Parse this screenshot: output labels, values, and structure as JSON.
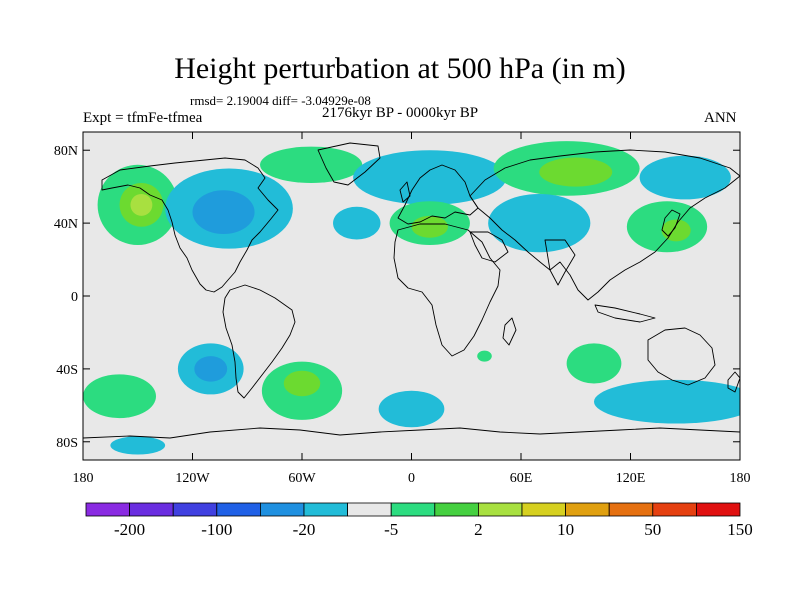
{
  "title": "Height perturbation at 500 hPa (in m)",
  "stats": "rmsd= 2.19004 diff= -3.04929e-08",
  "experiment": "Expt = tfmFe-tfmea",
  "period": "2176kyr BP - 0000kyr BP",
  "season": "ANN",
  "map": {
    "projection": "cylindrical-equidistant",
    "lon_range": [
      -180,
      180
    ],
    "lat_range": [
      -90,
      90
    ],
    "background_color": "#e8e8e8",
    "lat_ticks": [
      {
        "lat": 80,
        "label": "80N"
      },
      {
        "lat": 40,
        "label": "40N"
      },
      {
        "lat": 0,
        "label": "0"
      },
      {
        "lat": -40,
        "label": "40S"
      },
      {
        "lat": -80,
        "label": "80S"
      }
    ],
    "lon_ticks": [
      {
        "lon": -180,
        "label": "180"
      },
      {
        "lon": -120,
        "label": "120W"
      },
      {
        "lon": -60,
        "label": "60W"
      },
      {
        "lon": 0,
        "label": "0"
      },
      {
        "lon": 60,
        "label": "60E"
      },
      {
        "lon": 120,
        "label": "120E"
      },
      {
        "lon": 180,
        "label": "180"
      }
    ],
    "anomaly_regions": [
      {
        "lon": -150,
        "lat": 50,
        "rlon": 22,
        "rlat": 22,
        "color": "#2cdc80"
      },
      {
        "lon": -148,
        "lat": 50,
        "rlon": 12,
        "rlat": 12,
        "color": "#6cda30"
      },
      {
        "lon": -148,
        "lat": 50,
        "rlon": 6,
        "rlat": 6,
        "color": "#a8e040"
      },
      {
        "lon": -100,
        "lat": 48,
        "rlon": 35,
        "rlat": 22,
        "color": "#22bcd8"
      },
      {
        "lon": -103,
        "lat": 46,
        "rlon": 17,
        "rlat": 12,
        "color": "#1f9cdc"
      },
      {
        "lon": -55,
        "lat": 72,
        "rlon": 28,
        "rlat": 10,
        "color": "#2cdc80"
      },
      {
        "lon": -30,
        "lat": 40,
        "rlon": 13,
        "rlat": 9,
        "color": "#22bcd8"
      },
      {
        "lon": 10,
        "lat": 65,
        "rlon": 42,
        "rlat": 15,
        "color": "#22bcd8"
      },
      {
        "lon": 10,
        "lat": 40,
        "rlon": 22,
        "rlat": 12,
        "color": "#2cdc80"
      },
      {
        "lon": 10,
        "lat": 38,
        "rlon": 10,
        "rlat": 6,
        "color": "#6cda30"
      },
      {
        "lon": 85,
        "lat": 70,
        "rlon": 40,
        "rlat": 15,
        "color": "#2cdc80"
      },
      {
        "lon": 90,
        "lat": 68,
        "rlon": 20,
        "rlat": 8,
        "color": "#6cda30"
      },
      {
        "lon": 70,
        "lat": 40,
        "rlon": 28,
        "rlat": 16,
        "color": "#22bcd8"
      },
      {
        "lon": 150,
        "lat": 65,
        "rlon": 25,
        "rlat": 12,
        "color": "#22bcd8"
      },
      {
        "lon": 140,
        "lat": 38,
        "rlon": 22,
        "rlat": 14,
        "color": "#2cdc80"
      },
      {
        "lon": 145,
        "lat": 36,
        "rlon": 8,
        "rlat": 6,
        "color": "#6cda30"
      },
      {
        "lon": -110,
        "lat": -40,
        "rlon": 18,
        "rlat": 14,
        "color": "#22bcd8"
      },
      {
        "lon": -110,
        "lat": -40,
        "rlon": 9,
        "rlat": 7,
        "color": "#1f9cdc"
      },
      {
        "lon": -160,
        "lat": -55,
        "rlon": 20,
        "rlat": 12,
        "color": "#2cdc80"
      },
      {
        "lon": -60,
        "lat": -52,
        "rlon": 22,
        "rlat": 16,
        "color": "#2cdc80"
      },
      {
        "lon": -60,
        "lat": -48,
        "rlon": 10,
        "rlat": 7,
        "color": "#6cda30"
      },
      {
        "lon": 0,
        "lat": -62,
        "rlon": 18,
        "rlat": 10,
        "color": "#22bcd8"
      },
      {
        "lon": 100,
        "lat": -37,
        "rlon": 15,
        "rlat": 11,
        "color": "#2cdc80"
      },
      {
        "lon": 145,
        "lat": -58,
        "rlon": 45,
        "rlat": 12,
        "color": "#22bcd8"
      },
      {
        "lon": -150,
        "lat": -82,
        "rlon": 15,
        "rlat": 5,
        "color": "#22bcd8"
      },
      {
        "lon": 40,
        "lat": -33,
        "rlon": 4,
        "rlat": 3,
        "color": "#2cdc80"
      }
    ]
  },
  "colorbar": {
    "colors": [
      "#8a2be2",
      "#6a2de0",
      "#4040e0",
      "#2060e6",
      "#1f90e0",
      "#22bcd8",
      "#e8e8e8",
      "#2cdc80",
      "#45d040",
      "#a8e040",
      "#d6d020",
      "#e0a010",
      "#e57010",
      "#e54010",
      "#e01010"
    ],
    "labels": [
      {
        "index": 1,
        "text": "-200"
      },
      {
        "index": 3,
        "text": "-100"
      },
      {
        "index": 5,
        "text": "-20"
      },
      {
        "index": 7,
        "text": "-5"
      },
      {
        "index": 9,
        "text": "2"
      },
      {
        "index": 11,
        "text": "10"
      },
      {
        "index": 13,
        "text": "50"
      },
      {
        "index": 15,
        "text": "150"
      }
    ]
  }
}
